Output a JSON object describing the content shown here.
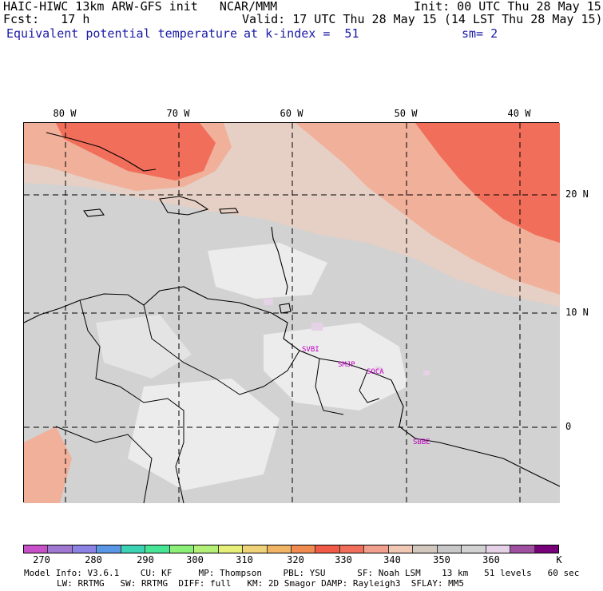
{
  "header": {
    "line1_left": "HAIC-HIWC 13km ARW-GFS init   NCAR/MMM",
    "line1_right": "Init: 00 UTC Thu 28 May 15",
    "line2_left": "Fcst:   17 h",
    "line2_right": "Valid: 17 UTC Thu 28 May 15 (14 LST Thu 28 May 15)",
    "line3_field": "Equivalent potential temperature",
    "line3_level": "at k-index =  51",
    "line3_smooth": "sm= 2"
  },
  "map": {
    "lon_labels": [
      "80 W",
      "70 W",
      "60 W",
      "50 W",
      "40 W"
    ],
    "lat_labels": [
      "20 N",
      "10 N",
      "0"
    ],
    "stations": [
      "SVBI",
      "SMJP",
      "SOCA",
      "SBBE"
    ]
  },
  "colorbar": {
    "colors": [
      "#c850c8",
      "#a078d2",
      "#8c82e6",
      "#5a96e6",
      "#3cd2b4",
      "#46e696",
      "#8cf078",
      "#b4f078",
      "#e6f078",
      "#f0d278",
      "#f0b464",
      "#f08c50",
      "#f05a46",
      "#f06e5a",
      "#f0a08c",
      "#f0c8b4",
      "#d2c8be",
      "#c8c8c8",
      "#d2d2d2",
      "#e6d2e6",
      "#a050a0",
      "#780078"
    ],
    "labels": [
      "270",
      "280",
      "290",
      "300",
      "310",
      "320",
      "330",
      "340",
      "350",
      "360",
      "K"
    ]
  },
  "footer": {
    "line1": "Model Info: V3.6.1    CU: KF     MP: Thompson    PBL: YSU      SF: Noah LSM    13 km   51 levels   60 sec",
    "line2": "LW: RRTMG   SW: RRTMG  DIFF: full   KM: 2D Smagor DAMP: Rayleigh3  SFLAY: MM5"
  }
}
